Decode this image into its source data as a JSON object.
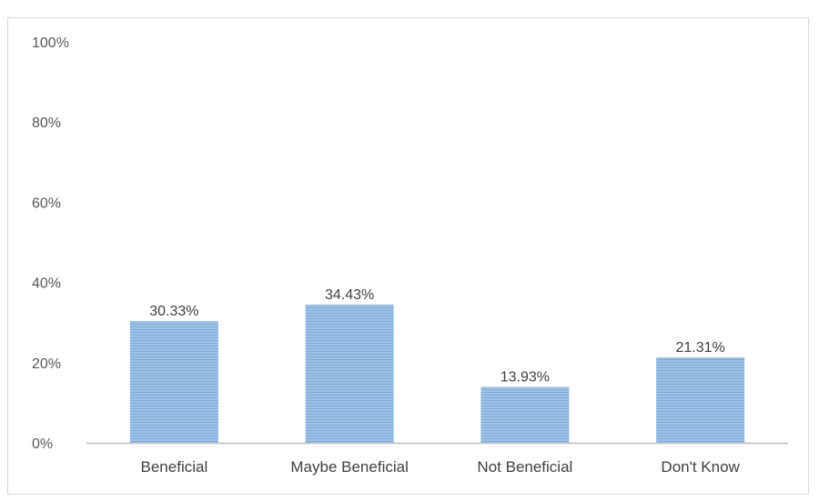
{
  "chart_data": {
    "type": "bar",
    "title": "",
    "xlabel": "",
    "ylabel": "",
    "categories": [
      "Beneficial",
      "Maybe Beneficial",
      "Not Beneficial",
      "Don't Know"
    ],
    "values": [
      30.33,
      34.43,
      13.93,
      21.31
    ],
    "value_labels": [
      "30.33%",
      "34.43%",
      "13.93%",
      "21.31%"
    ],
    "ylim": [
      0,
      100
    ],
    "yticks": [
      0,
      20,
      40,
      60,
      80,
      100
    ],
    "ytick_labels": [
      "0%",
      "20%",
      "40%",
      "60%",
      "80%",
      "100%"
    ],
    "grid": false,
    "legend": "none",
    "bar_color": "#9dc3e6",
    "bar_stripe_color": "#7fa9d6",
    "axis_color": "#bfbfbf"
  }
}
